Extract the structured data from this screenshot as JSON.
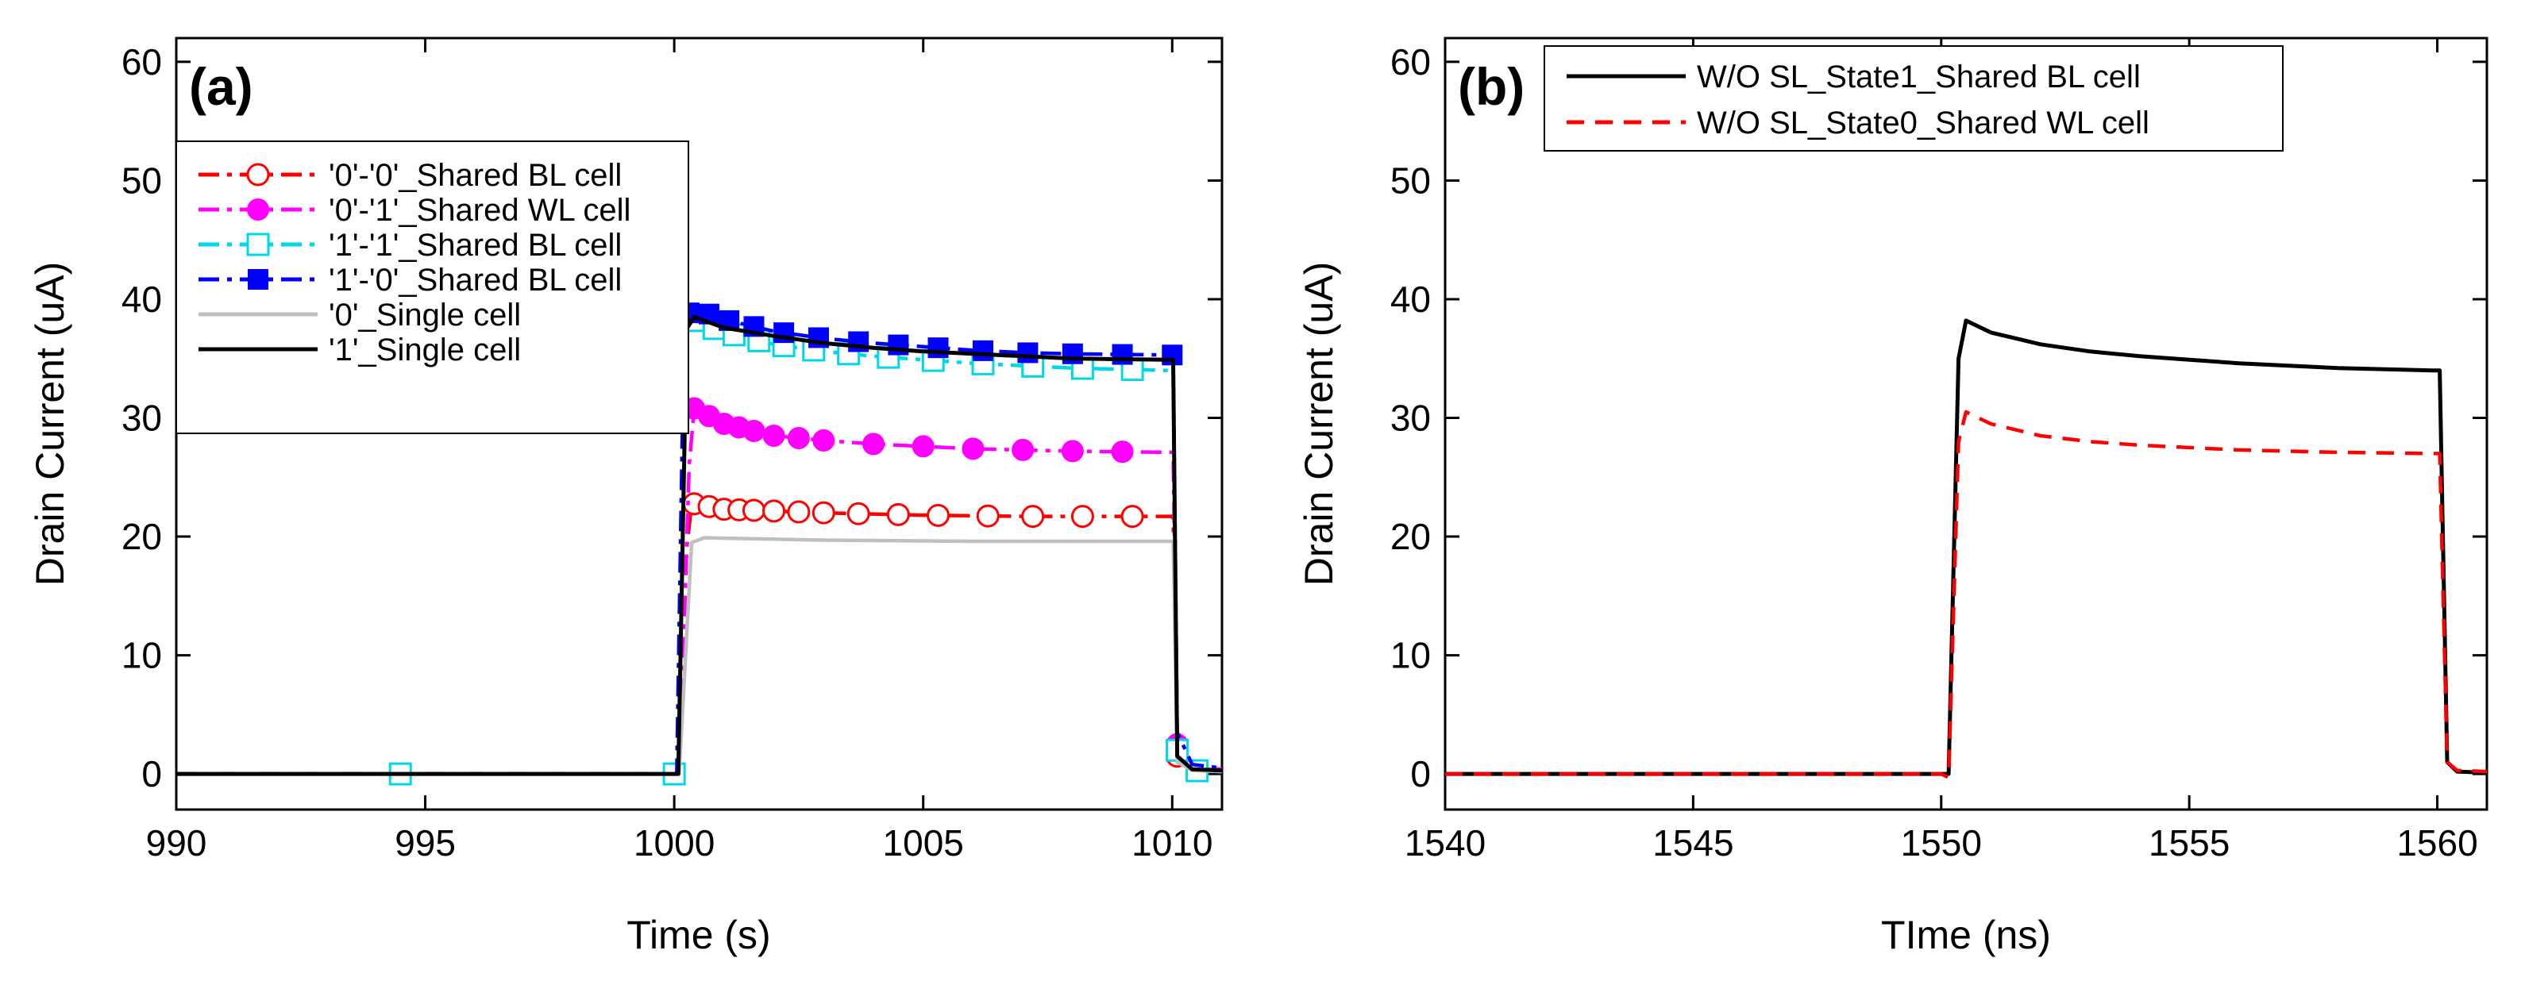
{
  "chart_data": [
    {
      "type": "line",
      "panel_label": "(a)",
      "xlabel": "Time (s)",
      "ylabel": "Drain Current (uA)",
      "xlim": [
        990,
        1011
      ],
      "ylim": [
        -3,
        62
      ],
      "xticks": [
        990,
        995,
        1000,
        1005,
        1010
      ],
      "yticks": [
        0,
        10,
        20,
        30,
        40,
        50,
        60
      ],
      "legend_position": "upper-left",
      "series": [
        {
          "name": "'0'-'0'_Shared BL cell",
          "color": "#ff0000",
          "line": "dash-dot",
          "marker": "circle-open",
          "points": [
            [
              990,
              0
            ],
            [
              1000,
              0
            ],
            [
              1000.1,
              0
            ],
            [
              1000.25,
              19
            ],
            [
              1000.35,
              22.8
            ],
            [
              1001,
              22.3
            ],
            [
              1003,
              22.0
            ],
            [
              1005,
              21.8
            ],
            [
              1007,
              21.7
            ],
            [
              1009.9,
              21.7
            ],
            [
              1010.02,
              21.7
            ],
            [
              1010.1,
              1.5
            ],
            [
              1010.4,
              0.5
            ],
            [
              1011,
              0.3
            ]
          ],
          "marker_x": [
            1000.4,
            1000.7,
            1001,
            1001.3,
            1001.6,
            1002,
            1002.5,
            1003,
            1003.7,
            1004.5,
            1005.3,
            1006.3,
            1007.2,
            1008.2,
            1009.2,
            1010.1
          ]
        },
        {
          "name": "'0'-'1'_Shared WL cell",
          "color": "#ff00ff",
          "line": "dash-dot",
          "marker": "circle-filled",
          "points": [
            [
              990,
              0
            ],
            [
              1000,
              0
            ],
            [
              1000.1,
              0
            ],
            [
              1000.3,
              26
            ],
            [
              1000.4,
              30.8
            ],
            [
              1001,
              29.5
            ],
            [
              1002,
              28.5
            ],
            [
              1003,
              28.1
            ],
            [
              1004,
              27.8
            ],
            [
              1005,
              27.6
            ],
            [
              1006,
              27.4
            ],
            [
              1007,
              27.3
            ],
            [
              1008,
              27.2
            ],
            [
              1009.9,
              27.1
            ],
            [
              1010.02,
              27.1
            ],
            [
              1010.1,
              2.5
            ],
            [
              1010.4,
              0.6
            ],
            [
              1011,
              0.4
            ]
          ],
          "marker_x": [
            1000.4,
            1000.7,
            1001,
            1001.3,
            1001.6,
            1002,
            1002.5,
            1003,
            1004,
            1005,
            1006,
            1007,
            1008,
            1009,
            1010.1
          ]
        },
        {
          "name": "'1'-'1'_Shared BL cell",
          "color": "#00d8e8",
          "line": "dash-dot",
          "marker": "square-open",
          "points": [
            [
              990,
              0
            ],
            [
              1000,
              0
            ],
            [
              1000.05,
              0
            ],
            [
              1000.2,
              37.5
            ],
            [
              1000.4,
              38.2
            ],
            [
              1001,
              37.2
            ],
            [
              1002,
              36.2
            ],
            [
              1003,
              35.6
            ],
            [
              1004,
              35.2
            ],
            [
              1005,
              34.9
            ],
            [
              1006,
              34.6
            ],
            [
              1007,
              34.4
            ],
            [
              1008,
              34.2
            ],
            [
              1009.9,
              34.0
            ],
            [
              1010.02,
              34.0
            ],
            [
              1010.1,
              2
            ],
            [
              1010.3,
              0.3
            ],
            [
              1011,
              0.2
            ]
          ],
          "marker_x": [
            994.5,
            1000,
            1000.4,
            1000.8,
            1001.2,
            1001.7,
            1002.2,
            1002.8,
            1003.5,
            1004.3,
            1005.2,
            1006.2,
            1007.2,
            1008.2,
            1009.2,
            1010.1,
            1010.5
          ]
        },
        {
          "name": "'1'-'0'_Shared BL cell",
          "color": "#0000ff",
          "line": "dash-dot",
          "marker": "square-filled",
          "points": [
            [
              990,
              0
            ],
            [
              1000,
              0
            ],
            [
              1000.05,
              0
            ],
            [
              1000.2,
              38.5
            ],
            [
              1000.4,
              39.2
            ],
            [
              1001,
              38.3
            ],
            [
              1002,
              37.3
            ],
            [
              1003,
              36.7
            ],
            [
              1004,
              36.3
            ],
            [
              1005,
              36.0
            ],
            [
              1006,
              35.7
            ],
            [
              1007,
              35.5
            ],
            [
              1008,
              35.4
            ],
            [
              1009.9,
              35.3
            ],
            [
              1010.02,
              35.3
            ],
            [
              1010.1,
              3.5
            ],
            [
              1010.4,
              0.8
            ],
            [
              1011,
              0.5
            ]
          ],
          "marker_x": [
            1000.3,
            1000.7,
            1001.1,
            1001.6,
            1002.2,
            1002.9,
            1003.7,
            1004.5,
            1005.3,
            1006.2,
            1007.1,
            1008,
            1009,
            1010
          ]
        },
        {
          "name": "'0'_Single cell",
          "color": "#bfbfbf",
          "line": "solid",
          "marker": "none",
          "points": [
            [
              990,
              0
            ],
            [
              1000,
              0
            ],
            [
              1000.1,
              0
            ],
            [
              1000.35,
              19.5
            ],
            [
              1000.6,
              19.9
            ],
            [
              1003,
              19.7
            ],
            [
              1006,
              19.6
            ],
            [
              1009.9,
              19.6
            ],
            [
              1010.02,
              19.6
            ],
            [
              1010.1,
              1.0
            ],
            [
              1010.4,
              0.3
            ],
            [
              1011,
              0.2
            ]
          ]
        },
        {
          "name": "'1'_Single cell",
          "color": "#000000",
          "line": "solid",
          "marker": "none",
          "points": [
            [
              990,
              0
            ],
            [
              1000,
              0
            ],
            [
              1000.08,
              0
            ],
            [
              1000.25,
              37.5
            ],
            [
              1000.4,
              38.5
            ],
            [
              1001,
              37.6
            ],
            [
              1002,
              36.9
            ],
            [
              1003,
              36.3
            ],
            [
              1004,
              35.9
            ],
            [
              1005,
              35.6
            ],
            [
              1006,
              35.4
            ],
            [
              1007,
              35.2
            ],
            [
              1008,
              35.0
            ],
            [
              1009.9,
              34.9
            ],
            [
              1010.02,
              34.9
            ],
            [
              1010.1,
              1.5
            ],
            [
              1010.4,
              0.4
            ],
            [
              1011,
              0.3
            ]
          ]
        }
      ]
    },
    {
      "type": "line",
      "panel_label": "(b)",
      "xlabel": "TIme (ns)",
      "ylabel": "Drain Current (uA)",
      "xlim": [
        1540,
        1561
      ],
      "ylim": [
        -3,
        62
      ],
      "xticks": [
        1540,
        1545,
        1550,
        1555,
        1560
      ],
      "yticks": [
        0,
        10,
        20,
        30,
        40,
        50,
        60
      ],
      "legend_position": "top",
      "series": [
        {
          "name": "W/O SL_State1_Shared BL cell",
          "color": "#000000",
          "line": "solid",
          "points": [
            [
              1540,
              0
            ],
            [
              1550,
              0
            ],
            [
              1550.15,
              0
            ],
            [
              1550.35,
              35
            ],
            [
              1550.5,
              38.2
            ],
            [
              1551,
              37.2
            ],
            [
              1552,
              36.2
            ],
            [
              1553,
              35.6
            ],
            [
              1554,
              35.2
            ],
            [
              1555,
              34.9
            ],
            [
              1556,
              34.6
            ],
            [
              1557,
              34.4
            ],
            [
              1558,
              34.2
            ],
            [
              1559.9,
              34.0
            ],
            [
              1560.05,
              34.0
            ],
            [
              1560.2,
              1
            ],
            [
              1560.4,
              0.2
            ],
            [
              1561,
              0.1
            ]
          ]
        },
        {
          "name": "W/O SL_State0_Shared WL cell",
          "color": "#ff0000",
          "line": "dashed",
          "points": [
            [
              1540,
              0
            ],
            [
              1550,
              0
            ],
            [
              1550.15,
              -0.3
            ],
            [
              1550.35,
              28
            ],
            [
              1550.5,
              30.5
            ],
            [
              1551,
              29.5
            ],
            [
              1552,
              28.5
            ],
            [
              1553,
              28.0
            ],
            [
              1554,
              27.7
            ],
            [
              1555,
              27.5
            ],
            [
              1556,
              27.3
            ],
            [
              1557,
              27.2
            ],
            [
              1558,
              27.1
            ],
            [
              1559.9,
              27.0
            ],
            [
              1560.05,
              27.0
            ],
            [
              1560.2,
              1
            ],
            [
              1560.4,
              0.3
            ],
            [
              1561,
              0.2
            ]
          ]
        }
      ]
    }
  ]
}
